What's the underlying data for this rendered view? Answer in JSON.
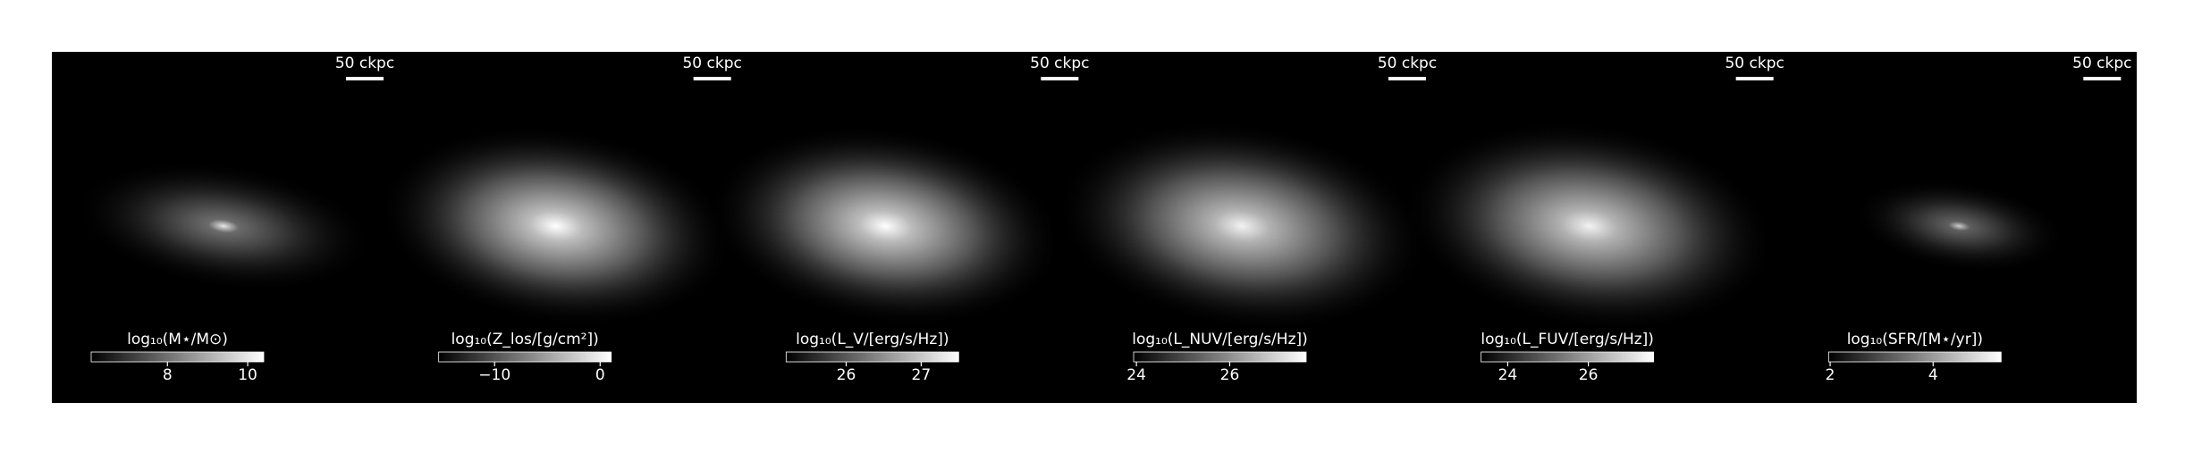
{
  "panels": [
    {
      "scale_label": "50 ckpc",
      "colorbar": {
        "label": "log₁₀(M⋆/M⊙)",
        "lim": [
          6.1,
          10.4
        ],
        "ticks": [
          8,
          10
        ]
      }
    },
    {
      "scale_label": "50 ckpc",
      "colorbar": {
        "label": "log₁₀(Z_los/[g/cm²])",
        "lim": [
          -15.3,
          1.05
        ],
        "ticks": [
          -10,
          0
        ]
      }
    },
    {
      "scale_label": "50 ckpc",
      "colorbar": {
        "label": "log₁₀(L_V/[erg/s/Hz])",
        "lim": [
          25.2,
          27.5
        ],
        "ticks": [
          26,
          27
        ]
      }
    },
    {
      "scale_label": "50 ckpc",
      "colorbar": {
        "label": "log₁₀(L_NUV/[erg/s/Hz])",
        "lim": [
          23.94,
          27.64
        ],
        "ticks": [
          24,
          26
        ]
      }
    },
    {
      "scale_label": "50 ckpc",
      "colorbar": {
        "label": "log₁₀(L_FUV/[erg/s/Hz])",
        "lim": [
          23.34,
          27.62
        ],
        "ticks": [
          24,
          26
        ]
      }
    },
    {
      "scale_label": "50 ckpc",
      "colorbar": {
        "label": "log₁₀(SFR/[M⋆/yr])",
        "lim": [
          1.97,
          5.32
        ],
        "ticks": [
          2,
          4
        ]
      }
    }
  ]
}
